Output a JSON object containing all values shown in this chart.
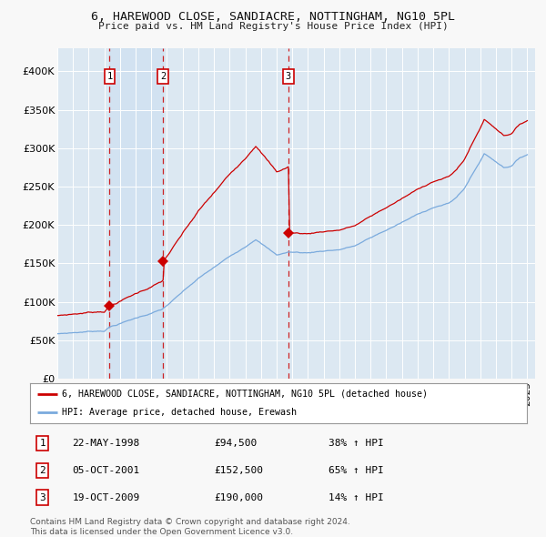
{
  "title1": "6, HAREWOOD CLOSE, SANDIACRE, NOTTINGHAM, NG10 5PL",
  "title2": "Price paid vs. HM Land Registry's House Price Index (HPI)",
  "legend_line1": "6, HAREWOOD CLOSE, SANDIACRE, NOTTINGHAM, NG10 5PL (detached house)",
  "legend_line2": "HPI: Average price, detached house, Erewash",
  "sale1_date": "22-MAY-1998",
  "sale1_price": 94500,
  "sale1_hpi": "38% ↑ HPI",
  "sale2_date": "05-OCT-2001",
  "sale2_price": 152500,
  "sale2_hpi": "65% ↑ HPI",
  "sale3_date": "19-OCT-2009",
  "sale3_price": 190000,
  "sale3_hpi": "14% ↑ HPI",
  "footer": "Contains HM Land Registry data © Crown copyright and database right 2024.\nThis data is licensed under the Open Government Licence v3.0.",
  "sale_color": "#cc0000",
  "hpi_color": "#7aaadd",
  "plot_bg": "#dce8f2",
  "grid_color": "#ffffff",
  "dashed_color": "#cc0000",
  "fig_bg": "#f8f8f8",
  "ylim": [
    0,
    420000
  ],
  "ylabel_ticks": [
    0,
    50000,
    100000,
    150000,
    200000,
    250000,
    300000,
    350000,
    400000
  ],
  "sale1_year": 1998.37,
  "sale2_year": 2001.75,
  "sale3_year": 2009.79
}
